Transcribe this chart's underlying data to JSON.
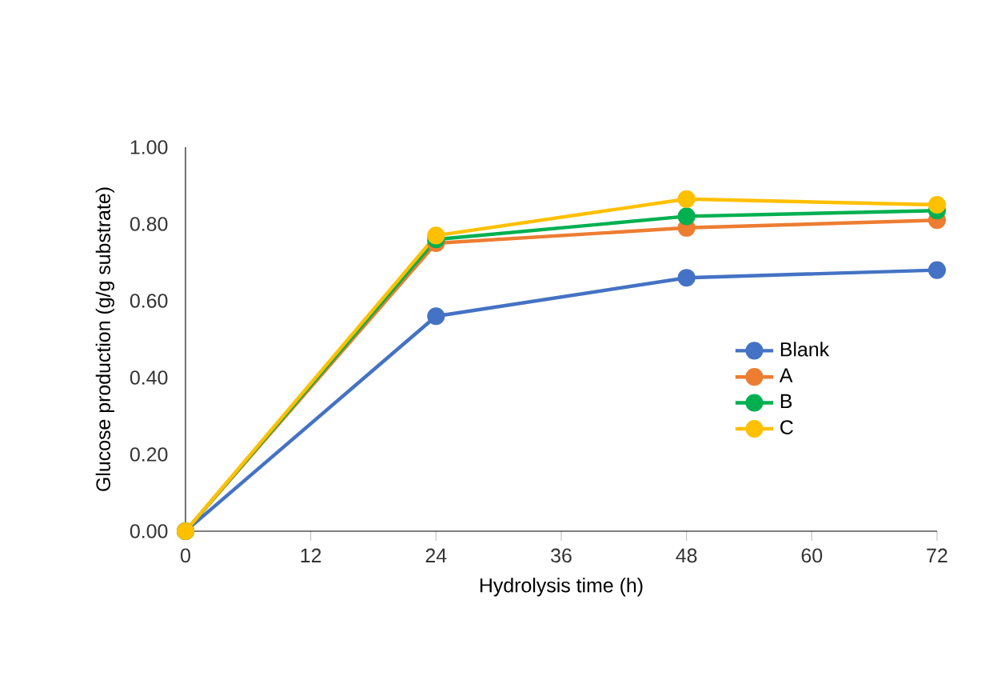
{
  "chart_data": {
    "type": "line",
    "xlabel": "Hydrolysis time (h)",
    "ylabel": "Glucose production (g/g substrate)",
    "x": [
      0,
      24,
      48,
      72
    ],
    "series": [
      {
        "name": "Blank",
        "color": "#4472c4",
        "values": [
          0,
          0.56,
          0.66,
          0.68
        ]
      },
      {
        "name": "A",
        "color": "#ed7d31",
        "values": [
          0,
          0.75,
          0.79,
          0.81
        ]
      },
      {
        "name": "B",
        "color": "#00b050",
        "values": [
          0,
          0.76,
          0.82,
          0.835
        ]
      },
      {
        "name": "C",
        "color": "#ffc000",
        "values": [
          0,
          0.77,
          0.865,
          0.85
        ]
      }
    ],
    "xlim": [
      0,
      72
    ],
    "ylim": [
      0,
      1
    ],
    "xticks": [
      0,
      12,
      24,
      36,
      48,
      60,
      72
    ],
    "yticks": [
      {
        "value": 0,
        "label": "0.00"
      },
      {
        "value": 0.2,
        "label": "0.20"
      },
      {
        "value": 0.4,
        "label": "0.40"
      },
      {
        "value": 0.6,
        "label": "0.60"
      },
      {
        "value": 0.8,
        "label": "0.80"
      },
      {
        "value": 1,
        "label": "1.00"
      }
    ],
    "grid": false,
    "legend": "right",
    "marker": "circle",
    "line_style": "solid"
  }
}
